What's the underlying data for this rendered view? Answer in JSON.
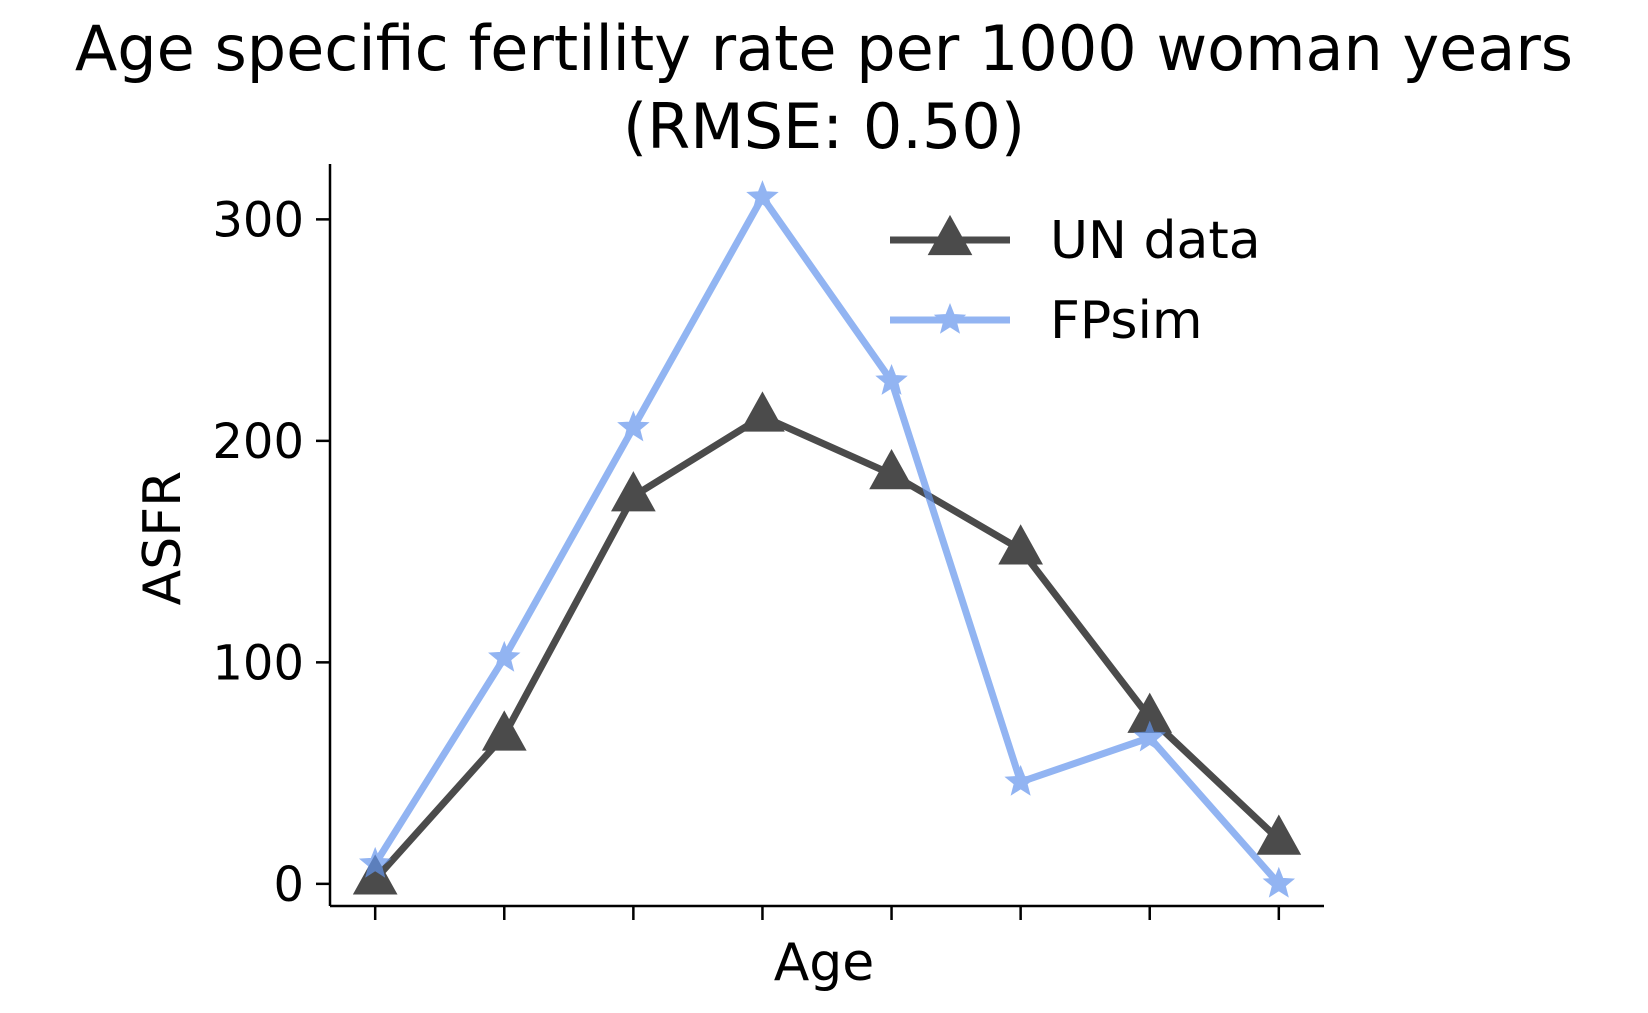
{
  "chart_data": {
    "type": "line",
    "title": "Age specific fertility rate per 1000 woman years",
    "subtitle": "(RMSE: 0.50)",
    "xlabel": "Age",
    "ylabel": "ASFR",
    "x": [
      0,
      1,
      2,
      3,
      4,
      5,
      6,
      7
    ],
    "xticks": [
      0,
      1,
      2,
      3,
      4,
      5,
      6,
      7
    ],
    "yticks": [
      0,
      100,
      200,
      300
    ],
    "ytick_labels": [
      "0",
      "100",
      "200",
      "300"
    ],
    "xlim": [
      -0.35,
      7.35
    ],
    "ylim": [
      -10,
      325
    ],
    "grid": false,
    "legend_position": "top-right",
    "series": [
      {
        "name": "UN data",
        "values": [
          2,
          67,
          175,
          211,
          185,
          151,
          75,
          20
        ],
        "color": "#000000",
        "opacity": 0.7,
        "marker": "triangle"
      },
      {
        "name": "FPsim",
        "values": [
          9,
          102,
          206,
          310,
          227,
          46,
          66,
          0
        ],
        "color": "#6495ed",
        "opacity": 0.7,
        "marker": "star"
      }
    ]
  }
}
